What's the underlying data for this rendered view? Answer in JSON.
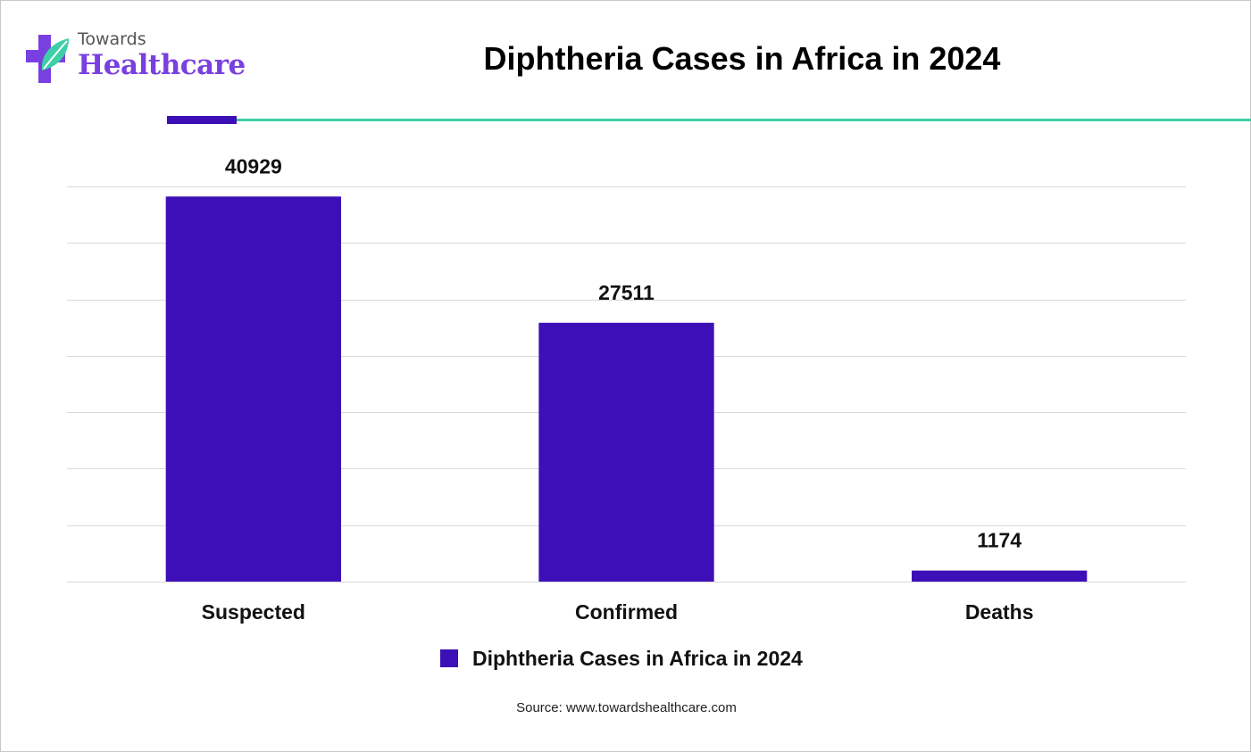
{
  "brand": {
    "line1": "Towards",
    "line2": "Healthcare"
  },
  "colors": {
    "bar": "#3d10b7",
    "accent_rule": "#3ecfa6",
    "grid": "#d9d9d9",
    "brand": "#7a3fe0"
  },
  "source": "Source: www.towardshealthcare.com",
  "chart_data": {
    "type": "bar",
    "title": "Diphtheria Cases in Africa in 2024",
    "categories": [
      "Suspected",
      "Confirmed",
      "Deaths"
    ],
    "series": [
      {
        "name": "Diphtheria Cases in Africa in 2024",
        "values": [
          40929,
          27511,
          1174
        ]
      }
    ],
    "ylim": [
      0,
      42000
    ],
    "y_axis_labels": "hidden",
    "grid": true,
    "data_labels": true,
    "legend_position": "bottom"
  }
}
